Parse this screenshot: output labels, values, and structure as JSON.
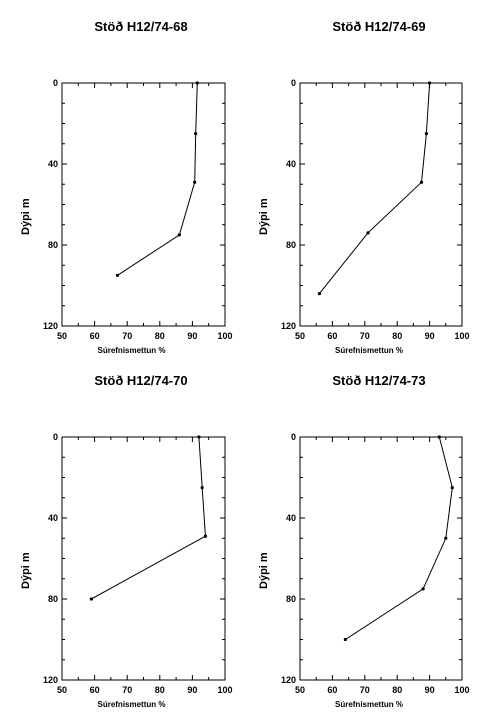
{
  "chart_data": [
    {
      "type": "line",
      "title": "Stöð H12/74-68",
      "xlabel": "Súrefnismettun %",
      "ylabel": "Dýpi m",
      "xlim": [
        50,
        100
      ],
      "ylim": [
        120,
        0
      ],
      "x_ticks": [
        "50",
        "60",
        "70",
        "80",
        "90",
        "100"
      ],
      "y_ticks": [
        "0",
        "40",
        "80",
        "120"
      ],
      "series": [
        {
          "x": [
            91.5,
            91,
            90.7,
            86,
            67
          ],
          "y": [
            0,
            25,
            49,
            75,
            95
          ]
        }
      ]
    },
    {
      "type": "line",
      "title": "Stöð H12/74-69",
      "xlabel": "Súrefnismettun %",
      "ylabel": "Dýpi m",
      "xlim": [
        50,
        100
      ],
      "ylim": [
        120,
        0
      ],
      "x_ticks": [
        "50",
        "60",
        "70",
        "80",
        "90",
        "100"
      ],
      "y_ticks": [
        "0",
        "40",
        "80",
        "120"
      ],
      "series": [
        {
          "x": [
            90,
            89,
            87.5,
            71,
            56
          ],
          "y": [
            0,
            25,
            49,
            74,
            104
          ]
        }
      ]
    },
    {
      "type": "line",
      "title": "Stöð H12/74-70",
      "xlabel": "Súrefnismettun %",
      "ylabel": "Dýpi m",
      "xlim": [
        50,
        100
      ],
      "ylim": [
        120,
        0
      ],
      "x_ticks": [
        "50",
        "60",
        "70",
        "80",
        "90",
        "100"
      ],
      "y_ticks": [
        "0",
        "40",
        "80",
        "120"
      ],
      "series": [
        {
          "x": [
            92,
            93,
            94,
            59
          ],
          "y": [
            0,
            25,
            49,
            80
          ]
        }
      ]
    },
    {
      "type": "line",
      "title": "Stöð H12/74-73",
      "xlabel": "Súrefnismettun %",
      "ylabel": "Dýpi m",
      "xlim": [
        50,
        100
      ],
      "ylim": [
        120,
        0
      ],
      "x_ticks": [
        "50",
        "60",
        "70",
        "80",
        "90",
        "100"
      ],
      "y_ticks": [
        "0",
        "40",
        "80",
        "120"
      ],
      "series": [
        {
          "x": [
            93,
            97,
            95,
            88,
            64
          ],
          "y": [
            0,
            25,
            50,
            75,
            100
          ]
        }
      ]
    }
  ]
}
